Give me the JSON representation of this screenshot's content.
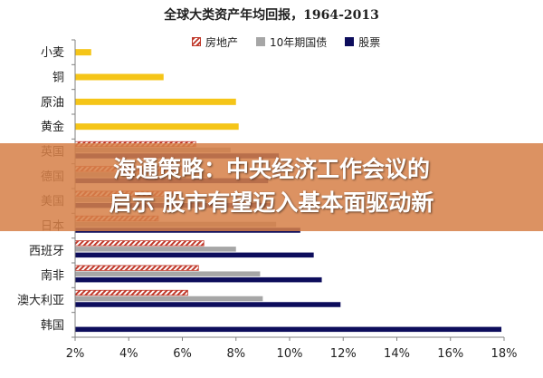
{
  "chart_data": {
    "type": "bar",
    "orientation": "horizontal",
    "title": "全球大类资产年均回报，1964-2013",
    "categories": [
      "小麦",
      "铜",
      "原油",
      "黄金",
      "英国",
      "德国",
      "美国",
      "日本",
      "西班牙",
      "南非",
      "澳大利亚",
      "韩国"
    ],
    "series": [
      {
        "name": "房地产",
        "color": "#c0392b",
        "pattern": "hatch",
        "values": [
          null,
          null,
          null,
          null,
          6.5,
          6.3,
          5.8,
          5.1,
          6.8,
          6.6,
          6.2,
          null
        ]
      },
      {
        "name": "10年期国债",
        "color": "#a6a6a6",
        "values": [
          null,
          null,
          null,
          null,
          7.8,
          7.0,
          7.0,
          9.5,
          8.0,
          8.9,
          9.0,
          null
        ]
      },
      {
        "name": "股票",
        "color": "#0d0d5c",
        "values": [
          null,
          null,
          null,
          null,
          9.6,
          9.2,
          9.4,
          10.4,
          10.9,
          11.2,
          11.9,
          17.9
        ]
      }
    ],
    "commodity_series": {
      "color": "#f5c518",
      "values": [
        2.6,
        5.3,
        8.0,
        8.1,
        null,
        null,
        null,
        null,
        null,
        null,
        null,
        null
      ]
    },
    "xlim": [
      2,
      18
    ],
    "xticks": [
      2,
      4,
      6,
      8,
      10,
      12,
      14,
      16,
      18
    ],
    "tick_format": "%",
    "legend_position": "top",
    "grid": false
  },
  "overlay": {
    "line1": "海通策略：中央经济工作会议的",
    "line2": "启示 股市有望迈入基本面驱动新"
  },
  "colors": {
    "axis": "#808080",
    "overlay_bg": "#d68048"
  }
}
